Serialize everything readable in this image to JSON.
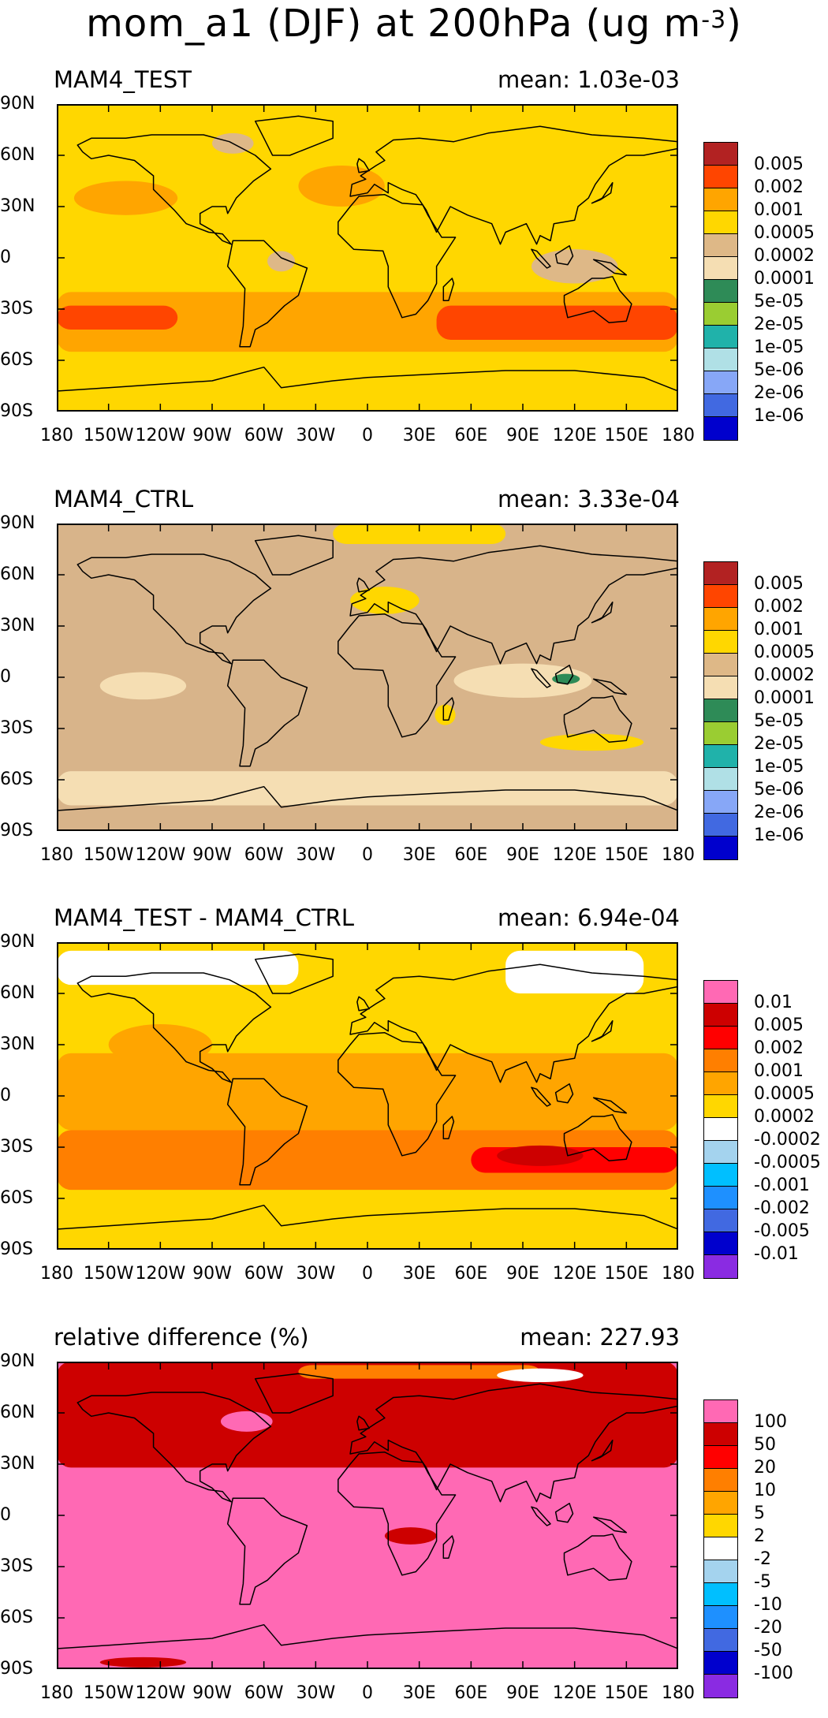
{
  "title": {
    "main": "mom_a1 (DJF) at 200hPa (ug m",
    "exponent": "-3",
    "close": ")"
  },
  "lat_ticks": [
    "90N",
    "60N",
    "30N",
    "0",
    "30S",
    "60S",
    "90S"
  ],
  "lon_ticks": [
    "180",
    "150W",
    "120W",
    "90W",
    "60W",
    "30W",
    "0",
    "30E",
    "60E",
    "90E",
    "120E",
    "150E",
    "180"
  ],
  "panels": [
    {
      "name": "MAM4_TEST",
      "mean": "mean: 1.03e-03",
      "background": "#ffd700",
      "colorbar": {
        "colors": [
          "#b22222",
          "#ff4500",
          "#ffa500",
          "#ffd700",
          "#deb887",
          "#f5deb3",
          "#2e8b57",
          "#9acd32",
          "#20b2aa",
          "#b0e0e6",
          "#87a7f7",
          "#4169e1",
          "#0000cd"
        ],
        "labels": [
          "0.005",
          "0.002",
          "0.001",
          "0.0005",
          "0.0002",
          "0.0001",
          "5e-05",
          "2e-05",
          "1e-05",
          "5e-06",
          "2e-06",
          "1e-06"
        ]
      }
    },
    {
      "name": "MAM4_CTRL",
      "mean": "mean: 3.33e-04",
      "background": "#d8b48a",
      "colorbar": {
        "colors": [
          "#b22222",
          "#ff4500",
          "#ffa500",
          "#ffd700",
          "#deb887",
          "#f5deb3",
          "#2e8b57",
          "#9acd32",
          "#20b2aa",
          "#b0e0e6",
          "#87a7f7",
          "#4169e1",
          "#0000cd"
        ],
        "labels": [
          "0.005",
          "0.002",
          "0.001",
          "0.0005",
          "0.0002",
          "0.0001",
          "5e-05",
          "2e-05",
          "1e-05",
          "5e-06",
          "2e-06",
          "1e-06"
        ]
      }
    },
    {
      "name": "MAM4_TEST - MAM4_CTRL",
      "mean": "mean: 6.94e-04",
      "background": "#ffd700",
      "colorbar": {
        "colors": [
          "#ff69b4",
          "#cd0000",
          "#ff0000",
          "#ff7f00",
          "#ffa500",
          "#ffd700",
          "#ffffff",
          "#a4d3ee",
          "#00bfff",
          "#1e90ff",
          "#4169e1",
          "#0000cd",
          "#8a2be2"
        ],
        "labels": [
          "0.01",
          "0.005",
          "0.002",
          "0.001",
          "0.0005",
          "0.0002",
          "-0.0002",
          "-0.0005",
          "-0.001",
          "-0.002",
          "-0.005",
          "-0.01"
        ]
      }
    },
    {
      "name": "relative difference (%)",
      "mean": "mean: 227.93",
      "background": "#ff69b4",
      "colorbar": {
        "colors": [
          "#ff69b4",
          "#cd0000",
          "#ff0000",
          "#ff7f00",
          "#ffa500",
          "#ffd700",
          "#ffffff",
          "#a4d3ee",
          "#00bfff",
          "#1e90ff",
          "#4169e1",
          "#0000cd",
          "#8a2be2"
        ],
        "labels": [
          "100",
          "50",
          "20",
          "10",
          "5",
          "2",
          "-2",
          "-5",
          "-10",
          "-20",
          "-50",
          "-100"
        ]
      }
    }
  ]
}
